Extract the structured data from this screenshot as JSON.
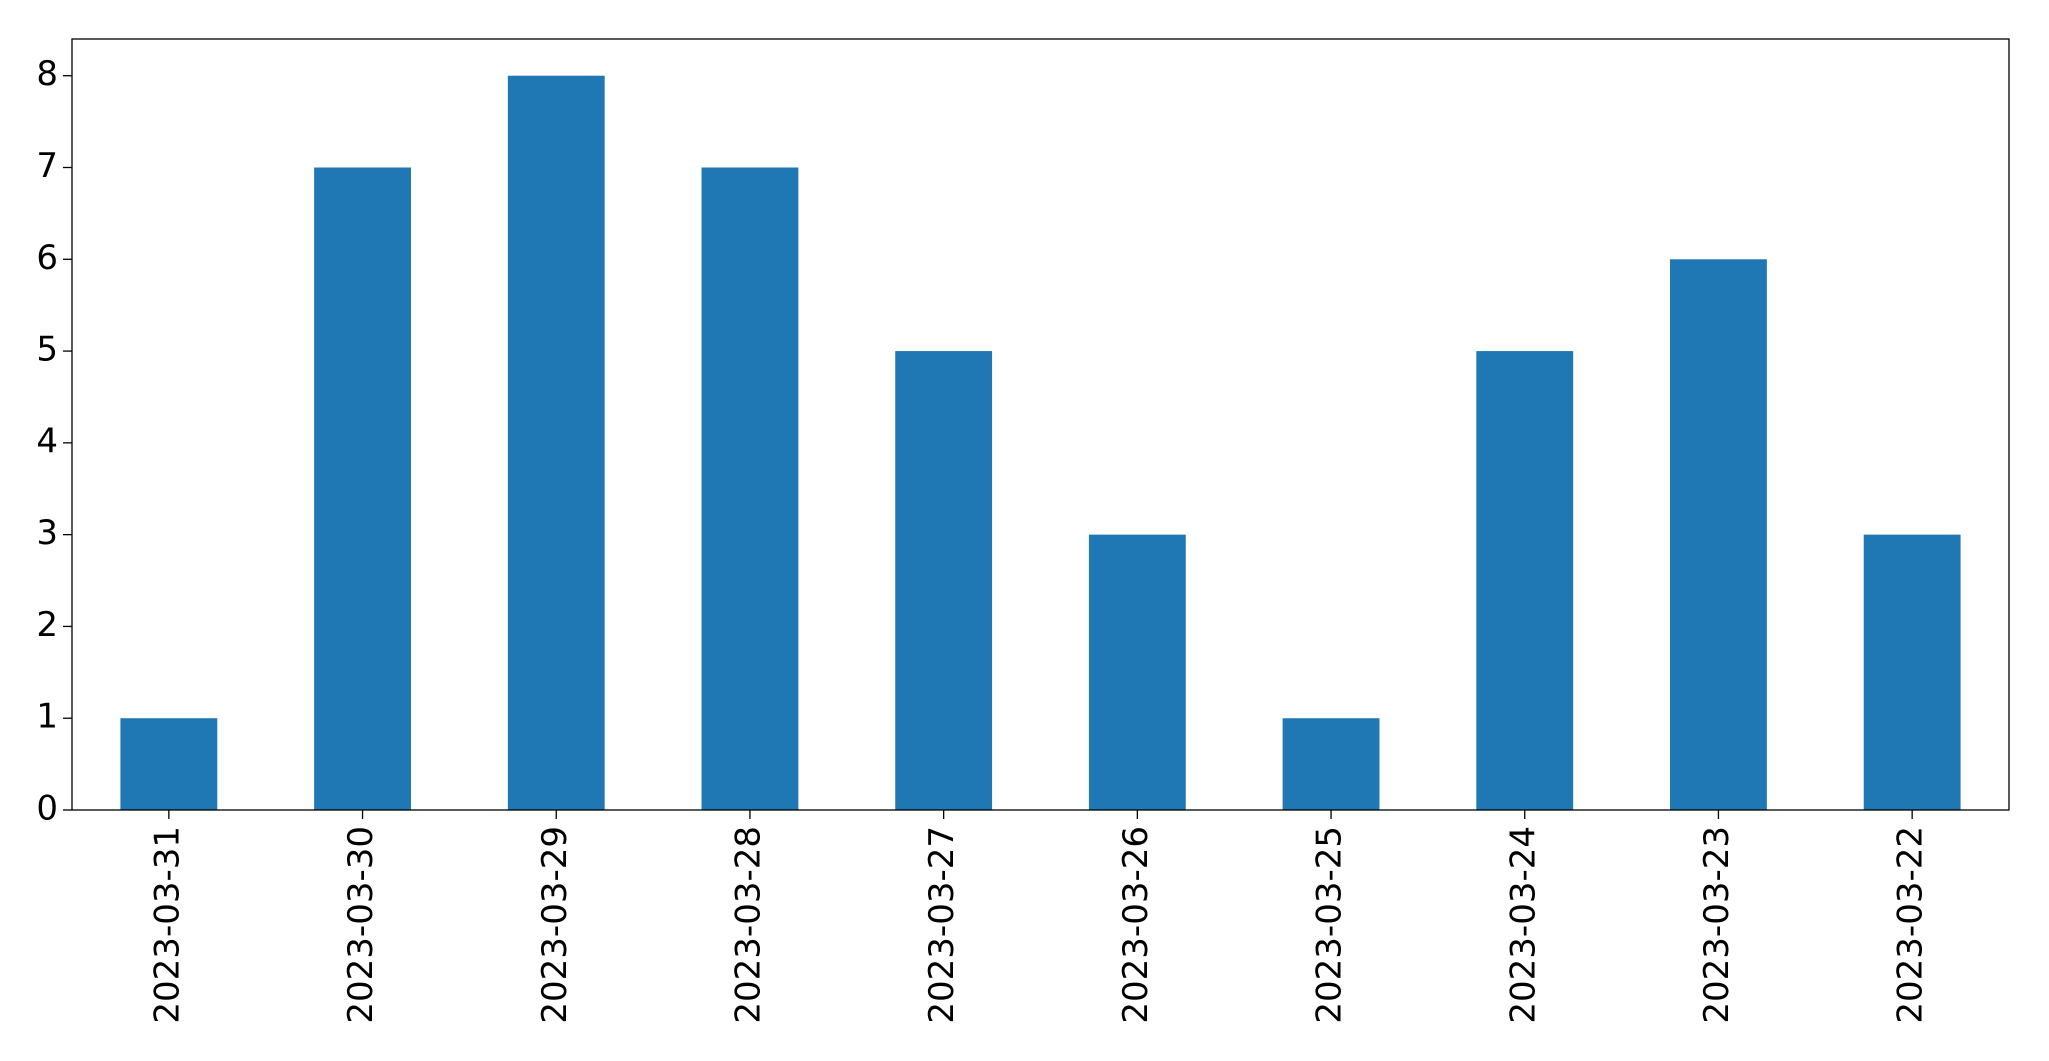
{
  "chart_data": {
    "type": "bar",
    "categories": [
      "2023-03-31",
      "2023-03-30",
      "2023-03-29",
      "2023-03-28",
      "2023-03-27",
      "2023-03-26",
      "2023-03-25",
      "2023-03-24",
      "2023-03-23",
      "2023-03-22"
    ],
    "values": [
      1,
      7,
      8,
      7,
      5,
      3,
      1,
      5,
      6,
      3
    ],
    "color": "#1f77b4",
    "ylim": [
      0,
      8.4
    ],
    "yticks": [
      0,
      1,
      2,
      3,
      4,
      5,
      6,
      7,
      8
    ],
    "grid": false
  }
}
